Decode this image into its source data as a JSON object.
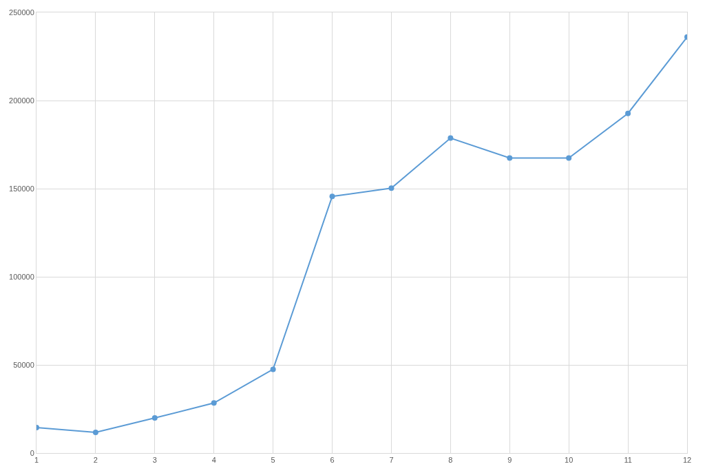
{
  "chart_data": {
    "type": "line",
    "x": [
      1,
      2,
      3,
      4,
      5,
      6,
      7,
      8,
      9,
      10,
      11,
      12
    ],
    "series": [
      {
        "color": "#5b9bd5",
        "values": [
          14500,
          11700,
          19900,
          28400,
          47500,
          145600,
          150300,
          178700,
          167400,
          167400,
          192700,
          236000
        ]
      }
    ],
    "xlim": [
      1,
      12
    ],
    "xticks": [
      1,
      2,
      3,
      4,
      5,
      6,
      7,
      8,
      9,
      10,
      11,
      12
    ],
    "ylim": [
      0,
      250000
    ],
    "yticks": [
      0,
      50000,
      100000,
      150000,
      200000,
      250000
    ],
    "grid": true,
    "marker": "circle",
    "line_style": "solid"
  }
}
